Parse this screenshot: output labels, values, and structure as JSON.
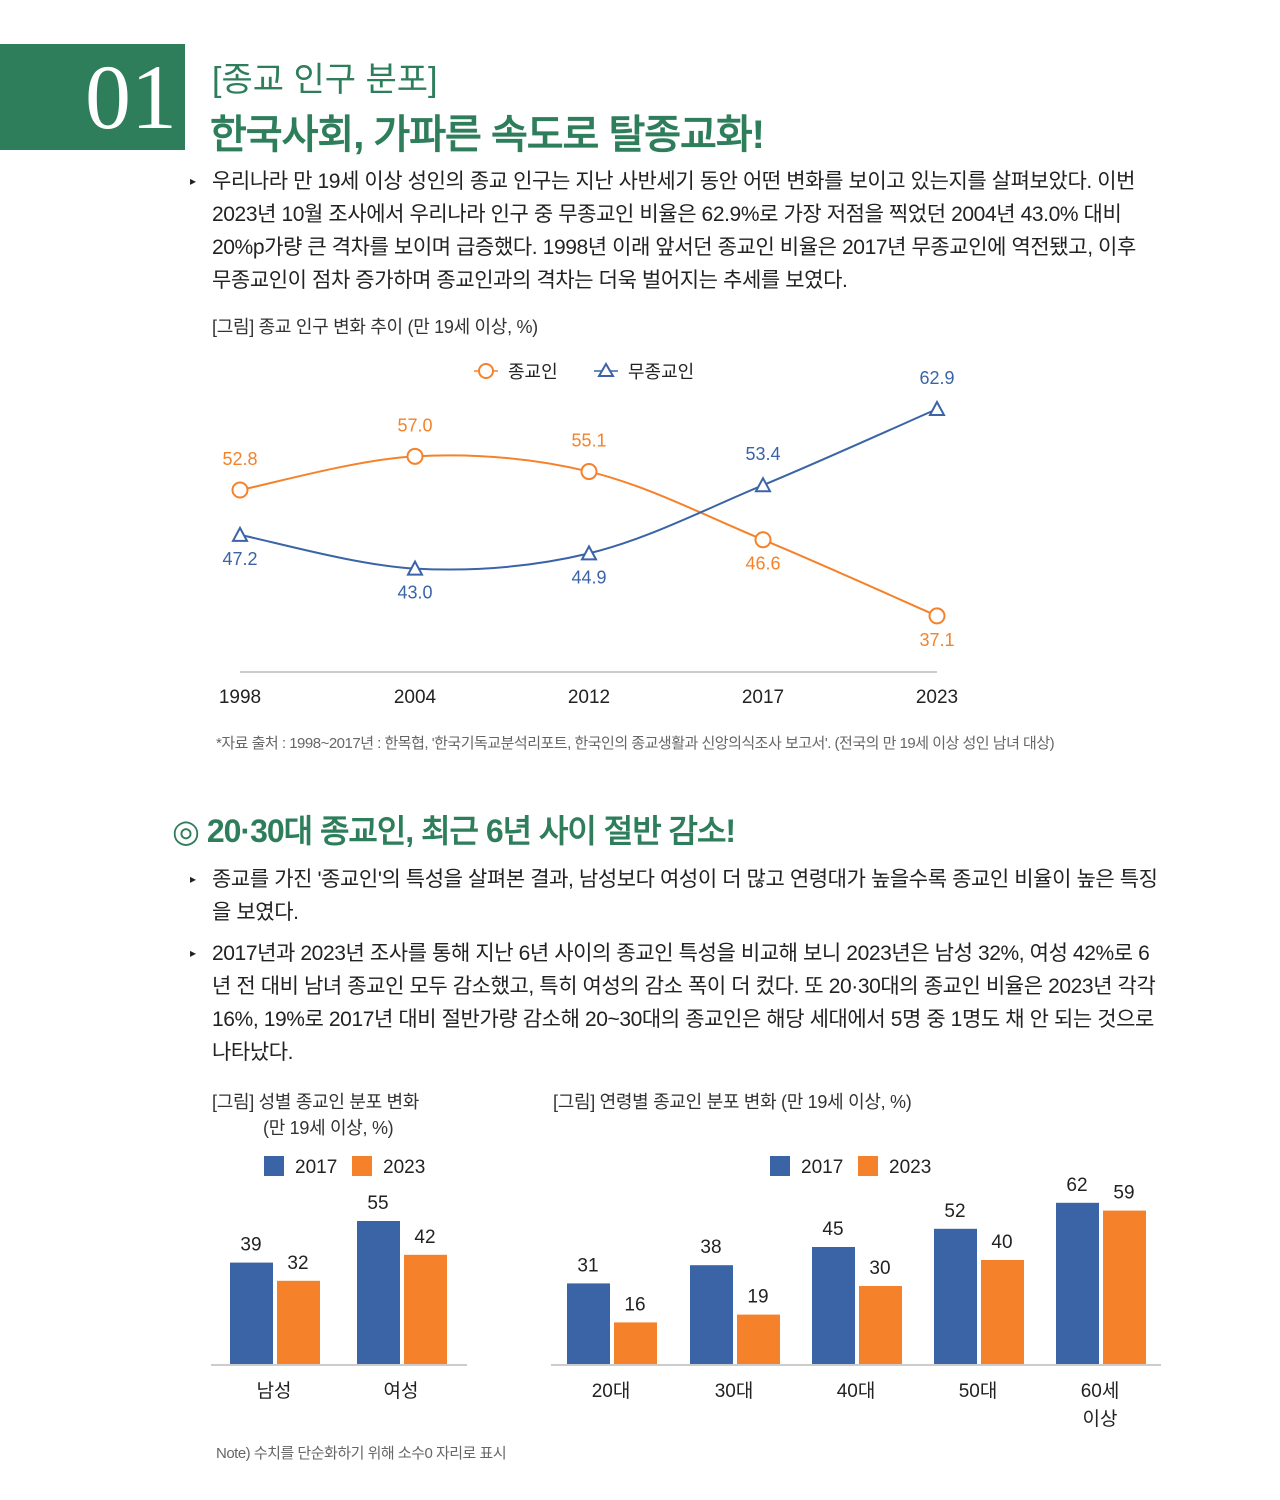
{
  "header": {
    "number": "01",
    "kicker": "[종교 인구 분포]",
    "title": "한국사회, 가파른 속도로 탈종교화!"
  },
  "intro": "우리나라 만 19세 이상 성인의 종교 인구는 지난 사반세기 동안 어떤 변화를 보이고 있는지를 살펴보았다. 이번 2023년 10월 조사에서 우리나라 인구 중 무종교인 비율은 62.9%로 가장 저점을 찍었던 2004년 43.0% 대비 20%p가량 큰 격차를 보이며 급증했다. 1998년 이래 앞서던 종교인 비율은 2017년 무종교인에 역전됐고, 이후 무종교인이 점차 증가하며 종교인과의 격차는 더욱 벌어지는 추세를 보였다.",
  "fig1_caption": "[그림] 종교 인구 변화 추이 (만 19세 이상, %)",
  "fig1_source": "*자료 출처 : 1998~2017년 : 한목협, '한국기독교분석리포트, 한국인의 종교생활과 신앙의식조사 보고서'. (전국의 만 19세 이상 성인 남녀 대상)",
  "section2": {
    "title": "◎ 20·30대 종교인, 최근 6년 사이 절반 감소!",
    "bullets": [
      "종교를 가진 '종교인'의 특성을 살펴본 결과, 남성보다 여성이 더 많고 연령대가 높을수록 종교인 비율이 높은 특징을 보였다.",
      "2017년과 2023년 조사를 통해 지난 6년 사이의 종교인 특성을 비교해 보니 2023년은 남성 32%, 여성 42%로 6년 전 대비 남녀 종교인 모두 감소했고, 특히 여성의 감소 폭이 더 컸다. 또 20·30대의 종교인 비율은 2023년 각각 16%, 19%로 2017년 대비 절반가량 감소해 20~30대의 종교인은 해당 세대에서 5명 중 1명도 채 안 되는 것으로 나타났다."
    ],
    "fig2_caption_1": "[그림] 성별 종교인 분포 변화",
    "fig2_caption_2": "(만 19세 이상, %)",
    "fig3_caption": "[그림] 연령별 종교인 분포 변화 (만 19세 이상, %)",
    "note": "Note) 수치를 단순화하기 위해 소수0 자리로 표시"
  },
  "chart_data": [
    {
      "type": "line",
      "categories": [
        "1998",
        "2004",
        "2012",
        "2017",
        "2023"
      ],
      "series": [
        {
          "name": "종교인",
          "values": [
            52.8,
            57.0,
            55.1,
            46.6,
            37.1
          ],
          "color": "#f5822a",
          "marker": "circle"
        },
        {
          "name": "무종교인",
          "values": [
            47.2,
            43.0,
            44.9,
            53.4,
            62.9
          ],
          "color": "#3a64a6",
          "marker": "triangle"
        }
      ],
      "ylim": [
        30,
        66
      ],
      "legend": "top-center"
    },
    {
      "type": "bar",
      "categories": [
        "남성",
        "여성"
      ],
      "series": [
        {
          "name": "2017",
          "values": [
            39,
            55
          ],
          "color": "#3a64a6"
        },
        {
          "name": "2023",
          "values": [
            32,
            42
          ],
          "color": "#f5822a"
        }
      ],
      "legend": "top"
    },
    {
      "type": "bar",
      "categories": [
        "20대",
        "30대",
        "40대",
        "50대",
        "60세\n이상"
      ],
      "series": [
        {
          "name": "2017",
          "values": [
            31,
            38,
            45,
            52,
            62
          ],
          "color": "#3a64a6"
        },
        {
          "name": "2023",
          "values": [
            16,
            19,
            30,
            40,
            59
          ],
          "color": "#f5822a"
        }
      ],
      "legend": "top"
    }
  ]
}
